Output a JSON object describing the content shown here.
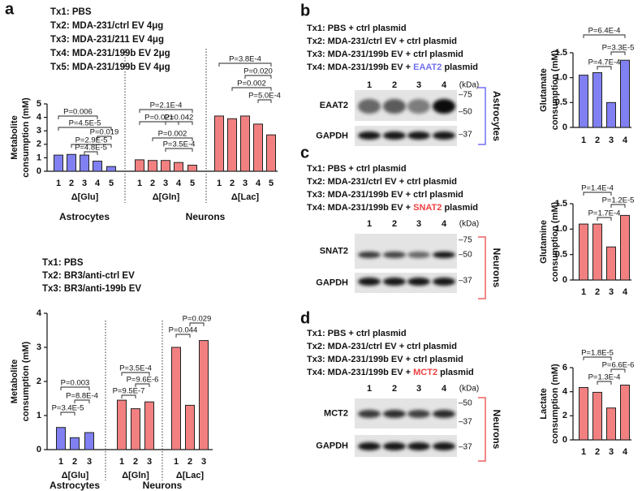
{
  "panel_labels": [
    "a",
    "b",
    "c",
    "d"
  ],
  "chart_data": [
    {
      "type": "bar",
      "ylabel": [
        "Metabolite",
        "consumption (mM)"
      ],
      "legend": [
        "Tx1: PBS",
        "Tx2: MDA-231/ctrl EV 4μg",
        "Tx3: MDA-231/211 EV 4μg",
        "Tx4: MDA-231/199b EV 2μg",
        "Tx5: MDA-231/199b EV 4μg"
      ],
      "ylim": [
        0,
        5
      ],
      "yticks": [
        0,
        1,
        2,
        3,
        4,
        5
      ],
      "groups": [
        {
          "name": "Δ[Glu]",
          "color": "#8080f2",
          "categories": [
            "1",
            "2",
            "3",
            "4",
            "5"
          ],
          "values": [
            1.2,
            1.25,
            1.2,
            0.75,
            0.35
          ]
        },
        {
          "name": "Δ[Gln]",
          "color": "#f28080",
          "categories": [
            "1",
            "2",
            "3",
            "4",
            "5"
          ],
          "values": [
            0.85,
            0.8,
            0.8,
            0.65,
            0.45
          ]
        },
        {
          "name": "Δ[Lac]",
          "color": "#f28080",
          "categories": [
            "1",
            "2",
            "3",
            "4",
            "5"
          ],
          "values": [
            4.1,
            3.9,
            4.1,
            3.5,
            2.7
          ]
        }
      ],
      "cell_labels": [
        {
          "text": "Astrocytes",
          "color": "#7070f0"
        },
        {
          "text": "Neurons",
          "color": "#f06060"
        }
      ],
      "annotations": [
        "P=0.006",
        "P=4.5E-5",
        "P=0.019",
        "P=2.9E-5",
        "P=4.8E-5",
        "P=2.1E-4",
        "P=0.021",
        "P=0.042",
        "P=0.002",
        "P=3.5E-4",
        "P=3.8E-4",
        "P=0.020",
        "P=0.002",
        "P=5.0E-4"
      ]
    },
    {
      "type": "bar",
      "ylabel": [
        "Metabolite",
        "consumption (mM)"
      ],
      "legend": [
        "Tx1: PBS",
        "Tx2: BR3/anti-ctrl EV",
        "Tx3: BR3/anti-199b EV"
      ],
      "ylim": [
        0,
        4
      ],
      "yticks": [
        0,
        1,
        2,
        3,
        4
      ],
      "groups": [
        {
          "name": "Δ[Glu]",
          "color": "#8080f2",
          "categories": [
            "1",
            "2",
            "3"
          ],
          "values": [
            0.65,
            0.35,
            0.5
          ]
        },
        {
          "name": "Δ[Gln]",
          "color": "#f28080",
          "categories": [
            "1",
            "2",
            "3"
          ],
          "values": [
            1.45,
            1.2,
            1.4
          ]
        },
        {
          "name": "Δ[Lac]",
          "color": "#f28080",
          "categories": [
            "1",
            "2",
            "3"
          ],
          "values": [
            3.0,
            1.3,
            3.2
          ]
        }
      ],
      "cell_labels": [
        {
          "text": "Astrocytes",
          "color": "#7070f0"
        },
        {
          "text": "Neurons",
          "color": "#f06060"
        }
      ],
      "annotations": [
        "P=0.003",
        "P=8.8E-4",
        "P=3.4E-5",
        "P=3.5E-4",
        "P=9.6E-6",
        "P=9.5E-7",
        "P=0.029",
        "P=0.044"
      ]
    },
    {
      "type": "bar",
      "ylabel": [
        "Glutamate",
        "consumption (mM)"
      ],
      "ylim": [
        0,
        1.5
      ],
      "yticks": [
        0,
        0.5,
        {
          "value": 1,
          "label": "1.0"
        },
        1.5
      ],
      "groups": [
        {
          "color": "#8080f2",
          "categories": [
            "1",
            "2",
            "3",
            "4"
          ],
          "values": [
            1.05,
            1.1,
            0.5,
            1.35
          ]
        }
      ],
      "annotations": [
        "P=6.4E-4",
        "P=4.7E-4",
        "P=3.3E-5"
      ]
    },
    {
      "type": "bar",
      "ylabel": [
        "Glutamine",
        "consumption (mM)"
      ],
      "ylim": [
        0,
        1.5
      ],
      "yticks": [
        0,
        0.5,
        {
          "value": 1,
          "label": "1.0"
        },
        1.5
      ],
      "groups": [
        {
          "color": "#f28080",
          "categories": [
            "1",
            "2",
            "3",
            "4"
          ],
          "values": [
            1.1,
            1.1,
            0.65,
            1.27
          ]
        }
      ],
      "annotations": [
        "P=1.4E-4",
        "P=1.7E-4",
        "P=1.2E-5"
      ]
    },
    {
      "type": "bar",
      "ylabel": [
        "Lactate",
        "consumption (mM)"
      ],
      "ylim": [
        0,
        6
      ],
      "yticks": [
        0,
        2,
        4,
        6
      ],
      "groups": [
        {
          "color": "#f28080",
          "categories": [
            "1",
            "2",
            "3",
            "4"
          ],
          "values": [
            4.35,
            3.95,
            2.65,
            4.55
          ]
        }
      ],
      "annotations": [
        "P=1.8E-5",
        "P=1.3E-4",
        "P=6.6E-6"
      ]
    }
  ],
  "blots": [
    {
      "legend": [
        "Tx1: PBS + ctrl plasmid",
        "Tx2: MDA-231/ctrl EV + ctrl plasmid",
        "Tx3: MDA-231/199b EV + ctrl plasmid"
      ],
      "legend_tx4": [
        "Tx4: MDA-231/199b EV + ",
        "EAAT2",
        " plasmid"
      ],
      "gene_color": "#7070f0",
      "lanes": [
        "1",
        "2",
        "3",
        "4"
      ],
      "unit": "(kDa)",
      "rows": [
        {
          "label": "EAAT2",
          "markers": [
            "–75",
            "–50"
          ]
        },
        {
          "label": "GAPDH",
          "markers": [
            "–37"
          ]
        }
      ],
      "cell_type": "Astrocytes",
      "cell_color": "#7070f0"
    },
    {
      "legend": [
        "Tx1: PBS + ctrl plasmid",
        "Tx2: MDA-231/ctrl EV + ctrl plasmid",
        "Tx3: MDA-231/199b EV + ctrl plasmid"
      ],
      "legend_tx4": [
        "Tx4: MDA-231/199b EV + ",
        "SNAT2",
        " plasmid"
      ],
      "gene_color": "#f04040",
      "lanes": [
        "1",
        "2",
        "3",
        "4"
      ],
      "unit": "(kDa)",
      "rows": [
        {
          "label": "SNAT2",
          "markers": [
            "–75",
            "–50"
          ]
        },
        {
          "label": "GAPDH",
          "markers": [
            "–37"
          ]
        }
      ],
      "cell_type": "Neurons",
      "cell_color": "#f06060"
    },
    {
      "legend": [
        "Tx1: PBS + ctrl plasmid",
        "Tx2: MDA-231/ctrl EV + ctrl plasmid",
        "Tx3: MDA-231/199b EV + ctrl plasmid"
      ],
      "legend_tx4": [
        "Tx4: MDA-231/199b EV + ",
        "MCT2",
        " plasmid"
      ],
      "gene_color": "#f04040",
      "lanes": [
        "1",
        "2",
        "3",
        "4"
      ],
      "unit": "(kDa)",
      "rows": [
        {
          "label": "MCT2",
          "markers": [
            "–50",
            "–37"
          ]
        },
        {
          "label": "GAPDH",
          "markers": [
            "–37"
          ]
        }
      ],
      "cell_type": "Neurons",
      "cell_color": "#f06060"
    }
  ]
}
